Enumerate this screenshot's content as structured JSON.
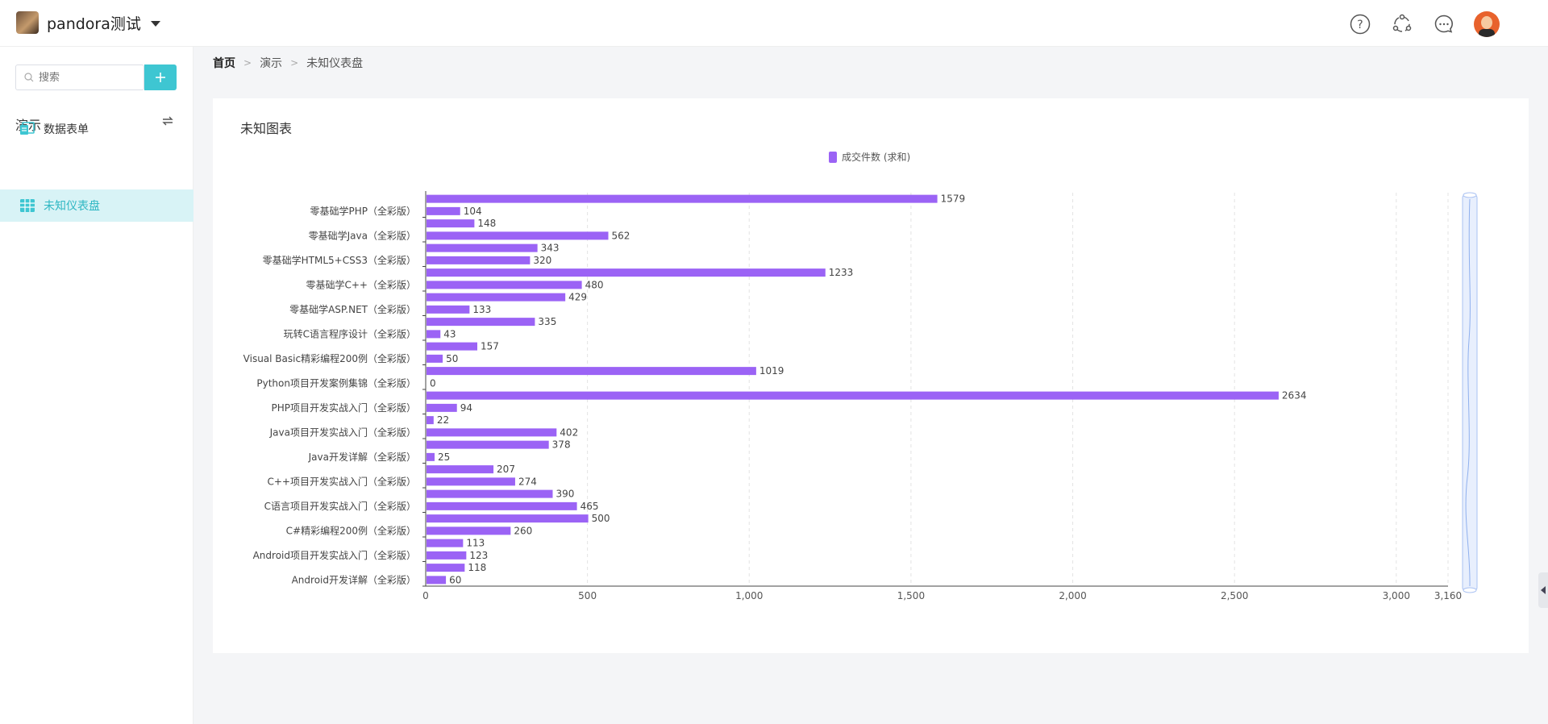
{
  "header": {
    "app_title": "pandora测试",
    "icons": [
      "help-icon",
      "share-icon",
      "message-icon",
      "user-avatar"
    ]
  },
  "sidebar": {
    "search_placeholder": "搜索",
    "add_label": "+",
    "group_title": "演示",
    "items": [
      {
        "label": "数据表单",
        "icon": "form-icon"
      },
      {
        "label": "未知仪表盘",
        "icon": "table-icon",
        "active": true
      }
    ]
  },
  "breadcrumb": [
    "首页",
    "演示",
    "未知仪表盘"
  ],
  "card": {
    "title": "未知图表"
  },
  "colors": {
    "accent": "#3ec6d2",
    "bar": "#9b63f5",
    "active_bg": "#d8f3f6"
  },
  "chart_data": {
    "type": "bar",
    "orientation": "horizontal",
    "title": "",
    "legend": "成交件数 (求和)",
    "legend_position": "top-center",
    "xlim": [
      0,
      3160
    ],
    "x_ticks": [
      "0",
      "500",
      "1,000",
      "1,500",
      "2,000",
      "2,500",
      "3,000",
      "3,160"
    ],
    "grid": "vertical-dashed",
    "categories": [
      "",
      "零基础学PHP（全彩版）",
      "",
      "零基础学Java（全彩版）",
      "",
      "零基础学HTML5+CSS3（全彩版）",
      "",
      "零基础学C++（全彩版）",
      "",
      "零基础学ASP.NET（全彩版）",
      "",
      "玩转C语言程序设计（全彩版）",
      "",
      "Visual Basic精彩编程200例（全彩版）",
      "",
      "Python项目开发案例集锦（全彩版）",
      "",
      "PHP项目开发实战入门（全彩版）",
      "",
      "Java项目开发实战入门（全彩版）",
      "",
      "Java开发详解（全彩版）",
      "",
      "C++项目开发实战入门（全彩版）",
      "",
      "C语言项目开发实战入门（全彩版）",
      "",
      "C#精彩编程200例（全彩版）",
      "",
      "Android项目开发实战入门（全彩版）",
      "",
      "Android开发详解（全彩版）"
    ],
    "values": [
      1579,
      104,
      148,
      562,
      343,
      320,
      1233,
      480,
      429,
      133,
      335,
      43,
      157,
      50,
      1019,
      0,
      2634,
      94,
      22,
      402,
      378,
      25,
      207,
      274,
      390,
      465,
      500,
      260,
      113,
      123,
      118,
      60
    ]
  }
}
